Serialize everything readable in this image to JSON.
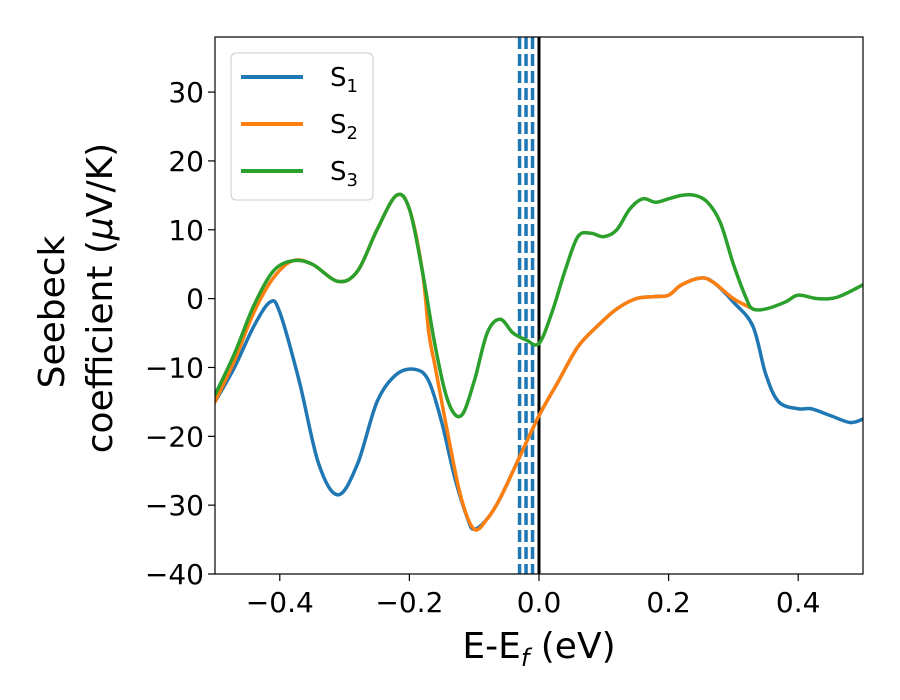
{
  "chart_data": {
    "type": "line",
    "xlabel": {
      "main": "E-E",
      "sub": "f",
      "tail": " (eV)"
    },
    "ylabel": {
      "line1": "Seebeck",
      "line2_pre": "coefficient  (",
      "mu": "μ",
      "line2_post": "V/K)"
    },
    "xlim": [
      -0.5,
      0.5
    ],
    "ylim": [
      -40,
      38
    ],
    "xticks": [
      -0.4,
      -0.2,
      0.0,
      0.2,
      0.4
    ],
    "xtick_labels": [
      "−0.4",
      "−0.2",
      "0.0",
      "0.2",
      "0.4"
    ],
    "yticks": [
      -40,
      -30,
      -20,
      -10,
      0,
      10,
      20,
      30
    ],
    "ytick_labels": [
      "−40",
      "−30",
      "−20",
      "−10",
      "0",
      "10",
      "20",
      "30"
    ],
    "grid": false,
    "legend_position": "top-left",
    "vlines": [
      {
        "x": -0.03,
        "style": "dashed",
        "color": "#1f77b4"
      },
      {
        "x": -0.02,
        "style": "dashed",
        "color": "#1f77b4"
      },
      {
        "x": -0.01,
        "style": "dashed",
        "color": "#1f77b4"
      },
      {
        "x": 0.0,
        "style": "solid",
        "color": "#000000"
      }
    ],
    "series": [
      {
        "name": "S",
        "sub": "1",
        "color": "#1f77b4",
        "points": [
          [
            -0.5,
            -15
          ],
          [
            -0.47,
            -10
          ],
          [
            -0.44,
            -4
          ],
          [
            -0.415,
            -0.5
          ],
          [
            -0.4,
            -2
          ],
          [
            -0.37,
            -12
          ],
          [
            -0.34,
            -24
          ],
          [
            -0.31,
            -28.5
          ],
          [
            -0.28,
            -24
          ],
          [
            -0.25,
            -15
          ],
          [
            -0.22,
            -11
          ],
          [
            -0.19,
            -10.3
          ],
          [
            -0.17,
            -12
          ],
          [
            -0.15,
            -18
          ],
          [
            -0.13,
            -26
          ],
          [
            -0.11,
            -32
          ],
          [
            -0.1,
            -33.5
          ],
          [
            -0.08,
            -32
          ],
          [
            -0.06,
            -29
          ],
          [
            -0.03,
            -23
          ],
          [
            0.0,
            -17
          ],
          [
            0.03,
            -12
          ],
          [
            0.06,
            -7
          ],
          [
            0.09,
            -4
          ],
          [
            0.12,
            -1.5
          ],
          [
            0.15,
            0
          ],
          [
            0.18,
            0.3
          ],
          [
            0.2,
            0.5
          ],
          [
            0.22,
            2
          ],
          [
            0.25,
            3
          ],
          [
            0.27,
            2.3
          ],
          [
            0.3,
            -0.5
          ],
          [
            0.33,
            -4
          ],
          [
            0.35,
            -11
          ],
          [
            0.37,
            -15
          ],
          [
            0.4,
            -16
          ],
          [
            0.42,
            -16
          ],
          [
            0.45,
            -17
          ],
          [
            0.48,
            -18
          ],
          [
            0.5,
            -17.5
          ]
        ]
      },
      {
        "name": "S",
        "sub": "2",
        "color": "#ff7f0e",
        "points": [
          [
            -0.5,
            -15
          ],
          [
            -0.47,
            -9
          ],
          [
            -0.44,
            -2
          ],
          [
            -0.41,
            3
          ],
          [
            -0.38,
            5.5
          ],
          [
            -0.35,
            5
          ],
          [
            -0.31,
            2.5
          ],
          [
            -0.28,
            4
          ],
          [
            -0.25,
            10
          ],
          [
            -0.22,
            15
          ],
          [
            -0.2,
            13
          ],
          [
            -0.18,
            4
          ],
          [
            -0.17,
            -5
          ],
          [
            -0.16,
            -10
          ],
          [
            -0.14,
            -20
          ],
          [
            -0.12,
            -29
          ],
          [
            -0.1,
            -33.5
          ],
          [
            -0.08,
            -32
          ],
          [
            -0.06,
            -29
          ],
          [
            -0.03,
            -23
          ],
          [
            0.0,
            -17
          ],
          [
            0.03,
            -12
          ],
          [
            0.06,
            -7
          ],
          [
            0.09,
            -4
          ],
          [
            0.12,
            -1.5
          ],
          [
            0.15,
            0
          ],
          [
            0.18,
            0.3
          ],
          [
            0.2,
            0.5
          ],
          [
            0.22,
            2
          ],
          [
            0.25,
            3
          ],
          [
            0.27,
            2.3
          ],
          [
            0.3,
            0
          ],
          [
            0.33,
            -1.5
          ]
        ]
      },
      {
        "name": "S",
        "sub": "3",
        "color": "#2ca02c",
        "points": [
          [
            -0.5,
            -14
          ],
          [
            -0.47,
            -8
          ],
          [
            -0.44,
            -1
          ],
          [
            -0.41,
            4
          ],
          [
            -0.38,
            5.5
          ],
          [
            -0.35,
            5
          ],
          [
            -0.31,
            2.5
          ],
          [
            -0.28,
            4
          ],
          [
            -0.25,
            10
          ],
          [
            -0.22,
            15
          ],
          [
            -0.2,
            13
          ],
          [
            -0.18,
            4
          ],
          [
            -0.16,
            -7
          ],
          [
            -0.14,
            -15
          ],
          [
            -0.12,
            -17
          ],
          [
            -0.1,
            -12
          ],
          [
            -0.08,
            -5
          ],
          [
            -0.06,
            -3
          ],
          [
            -0.04,
            -5
          ],
          [
            -0.02,
            -6
          ],
          [
            0.0,
            -6.5
          ],
          [
            0.02,
            -2
          ],
          [
            0.04,
            4
          ],
          [
            0.06,
            9
          ],
          [
            0.08,
            9.5
          ],
          [
            0.1,
            9
          ],
          [
            0.12,
            10
          ],
          [
            0.14,
            13
          ],
          [
            0.16,
            14.5
          ],
          [
            0.18,
            14
          ],
          [
            0.2,
            14.5
          ],
          [
            0.22,
            15
          ],
          [
            0.24,
            15
          ],
          [
            0.26,
            14
          ],
          [
            0.28,
            11
          ],
          [
            0.3,
            5
          ],
          [
            0.32,
            0
          ],
          [
            0.33,
            -1.5
          ],
          [
            0.35,
            -1.5
          ],
          [
            0.38,
            -0.5
          ],
          [
            0.4,
            0.5
          ],
          [
            0.43,
            0
          ],
          [
            0.46,
            0.2
          ],
          [
            0.5,
            2
          ]
        ]
      }
    ]
  }
}
